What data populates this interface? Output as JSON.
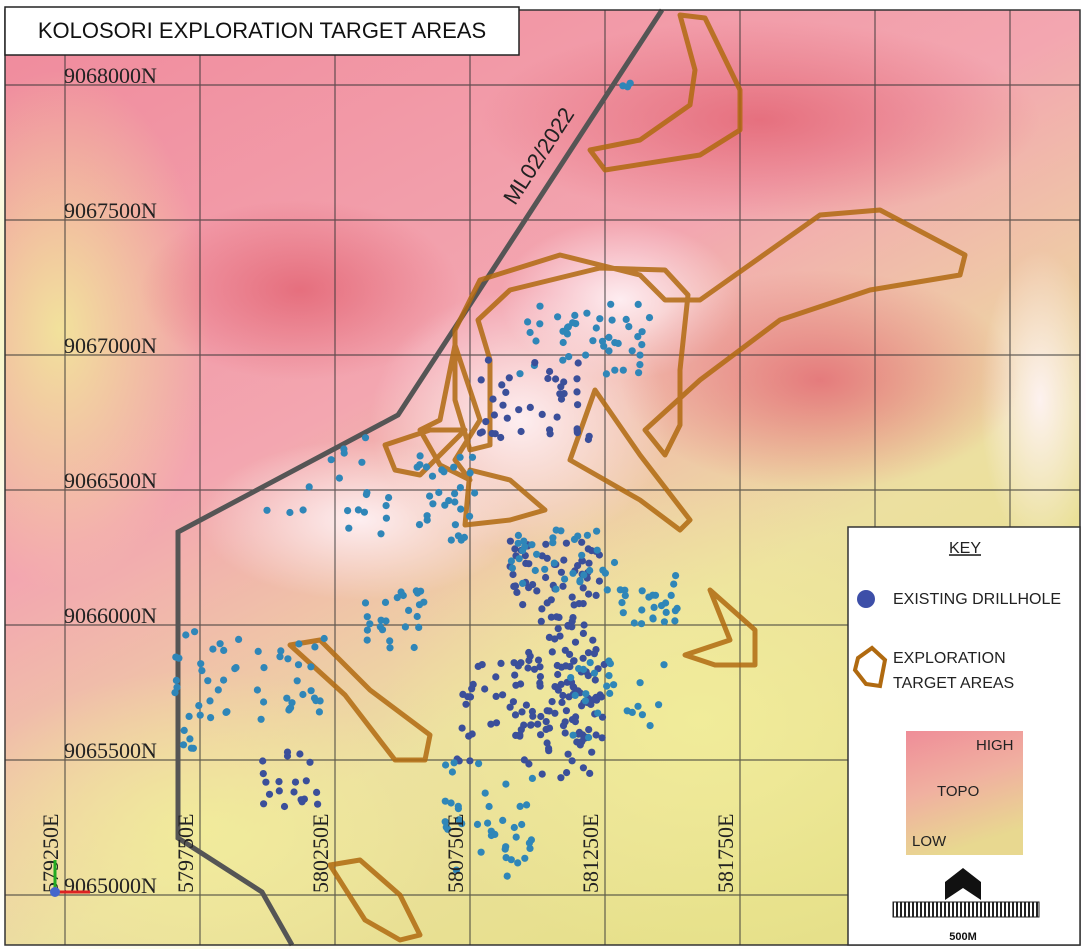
{
  "title": "KOLOSORI EXPLORATION TARGET AREAS",
  "grid": {
    "northings": [
      "9068000N",
      "9067500N",
      "9067000N",
      "9066500N",
      "9066000N",
      "9065500N",
      "9065000N"
    ],
    "eastings": [
      "579250E",
      "579750E",
      "580250E",
      "580750E",
      "581250E",
      "581750E"
    ]
  },
  "licence_label": "ML02/2022",
  "key": {
    "heading": "KEY",
    "drillhole": "EXISTING DRILLHOLE",
    "target": [
      "EXPLORATION",
      "TARGET AREAS"
    ],
    "topo": {
      "high": "HIGH",
      "mid": "TOPO",
      "low": "LOW"
    },
    "scale": "500M"
  }
}
